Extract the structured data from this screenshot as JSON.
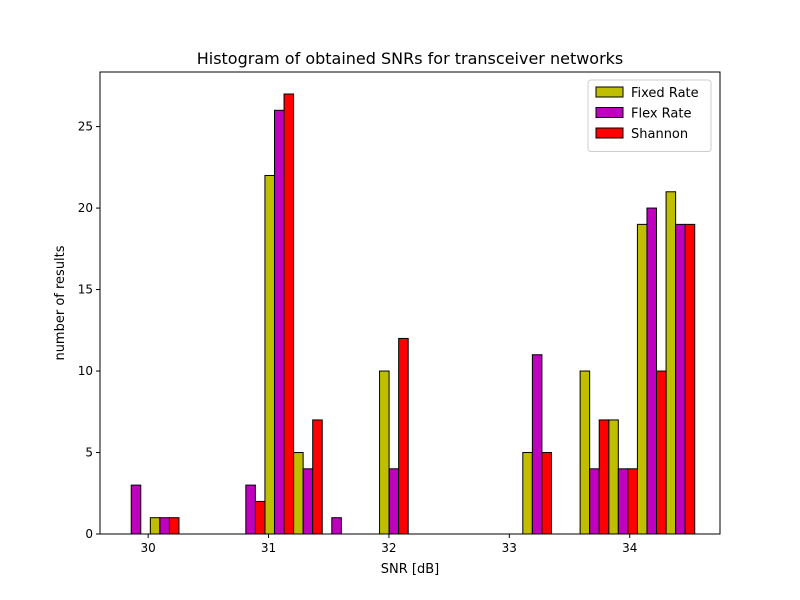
{
  "chart_data": {
    "type": "bar",
    "title": "Histogram of obtained SNRs for transceiver networks",
    "xlabel": "SNR [dB]",
    "ylabel": "number of results",
    "xlim": [
      29.6,
      34.75
    ],
    "ylim": [
      0,
      28.35
    ],
    "xticks": [
      30,
      31,
      32,
      33,
      34
    ],
    "yticks": [
      0,
      5,
      10,
      15,
      20,
      25
    ],
    "bin_width": 0.2381,
    "bin_starts": [
      29.78,
      30.018,
      30.256,
      30.494,
      30.732,
      30.97,
      31.208,
      31.446,
      31.684,
      31.922,
      32.16,
      32.398,
      32.636,
      32.874,
      33.112,
      33.35,
      33.588,
      33.826,
      34.064,
      34.302
    ],
    "grid": false,
    "legend": "top-right",
    "series": [
      {
        "name": "Fixed Rate",
        "color": "#bfbf00",
        "values": [
          0,
          1,
          0,
          0,
          0,
          22,
          5,
          0,
          0,
          10,
          0,
          0,
          0,
          0,
          5,
          0,
          10,
          7,
          19,
          21
        ]
      },
      {
        "name": "Flex Rate",
        "color": "#bf00bf",
        "values": [
          3,
          1,
          0,
          0,
          3,
          26,
          4,
          1,
          0,
          4,
          0,
          0,
          0,
          0,
          11,
          0,
          4,
          4,
          20,
          19
        ]
      },
      {
        "name": "Shannon",
        "color": "#ff0000",
        "values": [
          0,
          1,
          0,
          0,
          2,
          27,
          7,
          0,
          0,
          12,
          0,
          0,
          0,
          0,
          5,
          0,
          7,
          4,
          10,
          19
        ]
      }
    ]
  }
}
